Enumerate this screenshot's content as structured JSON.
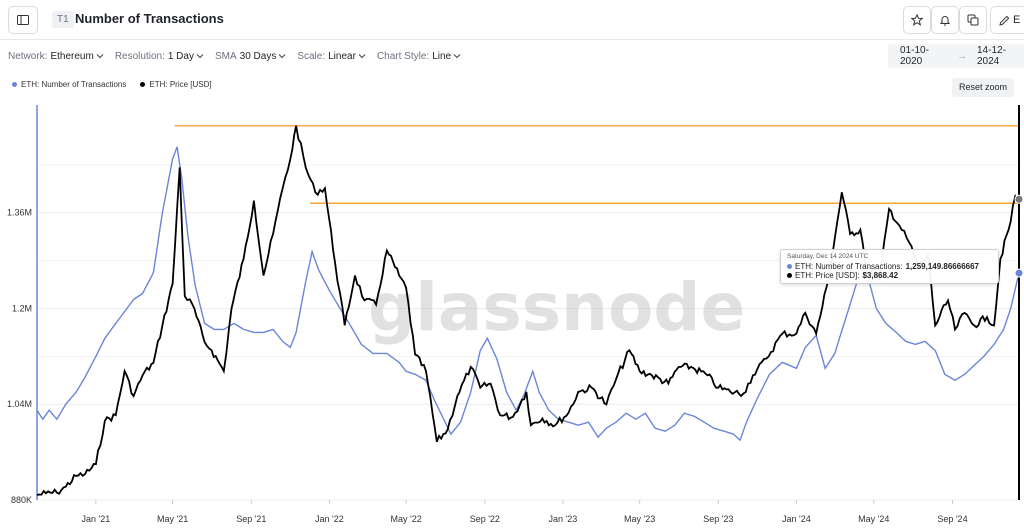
{
  "header": {
    "badge": "T1",
    "title": "Number of Transactions",
    "edit_label": "E"
  },
  "controls": [
    {
      "key": "Network:",
      "value": "Ethereum"
    },
    {
      "key": "Resolution:",
      "value": "1 Day"
    },
    {
      "key": "SMA",
      "value": "30 Days"
    },
    {
      "key": "Scale:",
      "value": "Linear"
    },
    {
      "key": "Chart Style:",
      "value": "Line"
    }
  ],
  "date_range": {
    "start": "01-10-2020",
    "arrow": "→",
    "end": "14-12-2024"
  },
  "reset_zoom": "Reset zoom",
  "watermark": "glassnode",
  "tooltip": {
    "date": "Saturday, Dec 14 2024 UTC",
    "rows": [
      {
        "label": "ETH: Number of Transactions:",
        "value": "1,259,149.86666667",
        "color": "#6b85d9"
      },
      {
        "label": "ETH: Price [USD]:",
        "value": "$3,868.42",
        "color": "#000000"
      }
    ]
  },
  "colors": {
    "transactions": "#6b85d9",
    "price": "#000000",
    "reference_lines": "#f7a535",
    "crosshair": "#000000"
  },
  "chart_data": {
    "type": "line",
    "x_axis": {
      "type": "date",
      "range": [
        "2020-10-01",
        "2024-12-14"
      ],
      "tick_labels": [
        "Jan '21",
        "May '21",
        "Sep '21",
        "Jan '22",
        "May '22",
        "Sep '22",
        "Jan '23",
        "May '23",
        "Sep '23",
        "Jan '24",
        "May '24",
        "Sep '24"
      ]
    },
    "y_axis": {
      "range": [
        880000,
        1540000
      ],
      "ticks": [
        880000,
        1040000,
        1200000,
        1360000
      ],
      "tick_labels": [
        "880K",
        "1.04M",
        "1.2M",
        "1.36M"
      ]
    },
    "grid": true,
    "legend_position": "top-left",
    "reference_lines": [
      {
        "y_price": 4800
      },
      {
        "y_price": 3868.42
      }
    ],
    "series": [
      {
        "name": "ETH: Number of Transactions",
        "axis": "left",
        "color": "#6b85d9",
        "points": [
          [
            "2020-10-01",
            1030000
          ],
          [
            "2020-10-10",
            1015000
          ],
          [
            "2020-10-20",
            1030000
          ],
          [
            "2020-11-01",
            1015000
          ],
          [
            "2020-11-15",
            1040000
          ],
          [
            "2020-12-01",
            1060000
          ],
          [
            "2020-12-15",
            1085000
          ],
          [
            "2021-01-01",
            1120000
          ],
          [
            "2021-01-15",
            1150000
          ],
          [
            "2021-02-01",
            1175000
          ],
          [
            "2021-02-15",
            1195000
          ],
          [
            "2021-03-01",
            1215000
          ],
          [
            "2021-03-15",
            1225000
          ],
          [
            "2021-04-01",
            1260000
          ],
          [
            "2021-04-15",
            1360000
          ],
          [
            "2021-05-01",
            1450000
          ],
          [
            "2021-05-08",
            1470000
          ],
          [
            "2021-05-15",
            1420000
          ],
          [
            "2021-05-25",
            1320000
          ],
          [
            "2021-06-05",
            1240000
          ],
          [
            "2021-06-20",
            1175000
          ],
          [
            "2021-07-05",
            1165000
          ],
          [
            "2021-07-20",
            1165000
          ],
          [
            "2021-08-05",
            1175000
          ],
          [
            "2021-08-20",
            1165000
          ],
          [
            "2021-09-05",
            1160000
          ],
          [
            "2021-09-20",
            1160000
          ],
          [
            "2021-10-05",
            1165000
          ],
          [
            "2021-10-20",
            1145000
          ],
          [
            "2021-11-01",
            1135000
          ],
          [
            "2021-11-10",
            1160000
          ],
          [
            "2021-11-25",
            1245000
          ],
          [
            "2021-12-05",
            1295000
          ],
          [
            "2021-12-15",
            1265000
          ],
          [
            "2022-01-01",
            1230000
          ],
          [
            "2022-01-15",
            1205000
          ],
          [
            "2022-02-01",
            1175000
          ],
          [
            "2022-02-20",
            1140000
          ],
          [
            "2022-03-10",
            1125000
          ],
          [
            "2022-04-01",
            1125000
          ],
          [
            "2022-04-20",
            1110000
          ],
          [
            "2022-05-01",
            1095000
          ],
          [
            "2022-05-15",
            1090000
          ],
          [
            "2022-06-01",
            1080000
          ],
          [
            "2022-06-15",
            1045000
          ],
          [
            "2022-07-01",
            1010000
          ],
          [
            "2022-07-10",
            990000
          ],
          [
            "2022-07-25",
            1010000
          ],
          [
            "2022-08-10",
            1060000
          ],
          [
            "2022-08-25",
            1130000
          ],
          [
            "2022-09-05",
            1150000
          ],
          [
            "2022-09-20",
            1115000
          ],
          [
            "2022-10-05",
            1060000
          ],
          [
            "2022-10-20",
            1030000
          ],
          [
            "2022-11-01",
            1055000
          ],
          [
            "2022-11-15",
            1095000
          ],
          [
            "2022-11-25",
            1060000
          ],
          [
            "2022-12-10",
            1030000
          ],
          [
            "2022-12-25",
            1015000
          ],
          [
            "2023-01-10",
            1010000
          ],
          [
            "2023-01-25",
            1005000
          ],
          [
            "2023-02-10",
            1010000
          ],
          [
            "2023-02-25",
            985000
          ],
          [
            "2023-03-10",
            1000000
          ],
          [
            "2023-03-25",
            1010000
          ],
          [
            "2023-04-10",
            1025000
          ],
          [
            "2023-04-25",
            1015000
          ],
          [
            "2023-05-10",
            1025000
          ],
          [
            "2023-05-25",
            1000000
          ],
          [
            "2023-06-10",
            995000
          ],
          [
            "2023-06-25",
            1005000
          ],
          [
            "2023-07-10",
            1025000
          ],
          [
            "2023-07-25",
            1020000
          ],
          [
            "2023-08-10",
            1010000
          ],
          [
            "2023-08-25",
            1000000
          ],
          [
            "2023-09-10",
            995000
          ],
          [
            "2023-09-25",
            990000
          ],
          [
            "2023-10-05",
            980000
          ],
          [
            "2023-10-15",
            1010000
          ],
          [
            "2023-11-01",
            1050000
          ],
          [
            "2023-11-20",
            1090000
          ],
          [
            "2023-12-10",
            1110000
          ],
          [
            "2024-01-01",
            1100000
          ],
          [
            "2024-01-15",
            1135000
          ],
          [
            "2024-02-01",
            1155000
          ],
          [
            "2024-02-15",
            1100000
          ],
          [
            "2024-03-01",
            1125000
          ],
          [
            "2024-03-20",
            1190000
          ],
          [
            "2024-04-05",
            1245000
          ],
          [
            "2024-04-20",
            1260000
          ],
          [
            "2024-05-05",
            1200000
          ],
          [
            "2024-05-20",
            1175000
          ],
          [
            "2024-06-05",
            1160000
          ],
          [
            "2024-06-20",
            1145000
          ],
          [
            "2024-07-05",
            1140000
          ],
          [
            "2024-07-20",
            1145000
          ],
          [
            "2024-08-05",
            1130000
          ],
          [
            "2024-08-20",
            1090000
          ],
          [
            "2024-09-05",
            1080000
          ],
          [
            "2024-09-20",
            1090000
          ],
          [
            "2024-10-05",
            1105000
          ],
          [
            "2024-10-20",
            1120000
          ],
          [
            "2024-11-05",
            1140000
          ],
          [
            "2024-11-20",
            1165000
          ],
          [
            "2024-12-01",
            1200000
          ],
          [
            "2024-12-14",
            1259150
          ]
        ]
      },
      {
        "name": "ETH: Price [USD]",
        "axis": "right",
        "color": "#000000",
        "points": [
          [
            "2020-10-01",
            360
          ],
          [
            "2020-10-15",
            380
          ],
          [
            "2020-11-01",
            390
          ],
          [
            "2020-11-15",
            460
          ],
          [
            "2020-12-01",
            590
          ],
          [
            "2020-12-15",
            610
          ],
          [
            "2021-01-01",
            730
          ],
          [
            "2021-01-15",
            1250
          ],
          [
            "2021-02-01",
            1320
          ],
          [
            "2021-02-15",
            1850
          ],
          [
            "2021-03-01",
            1550
          ],
          [
            "2021-03-15",
            1800
          ],
          [
            "2021-04-01",
            1950
          ],
          [
            "2021-04-15",
            2400
          ],
          [
            "2021-05-01",
            2900
          ],
          [
            "2021-05-12",
            4300
          ],
          [
            "2021-05-20",
            2750
          ],
          [
            "2021-06-01",
            2650
          ],
          [
            "2021-06-20",
            2200
          ],
          [
            "2021-07-01",
            2100
          ],
          [
            "2021-07-20",
            1850
          ],
          [
            "2021-08-01",
            2600
          ],
          [
            "2021-08-20",
            3200
          ],
          [
            "2021-09-05",
            3900
          ],
          [
            "2021-09-20",
            3000
          ],
          [
            "2021-10-05",
            3500
          ],
          [
            "2021-10-20",
            4050
          ],
          [
            "2021-11-01",
            4400
          ],
          [
            "2021-11-10",
            4800
          ],
          [
            "2021-11-25",
            4300
          ],
          [
            "2021-12-10",
            4000
          ],
          [
            "2021-12-25",
            4050
          ],
          [
            "2022-01-10",
            3150
          ],
          [
            "2022-01-25",
            2400
          ],
          [
            "2022-02-10",
            3000
          ],
          [
            "2022-02-25",
            2700
          ],
          [
            "2022-03-15",
            2650
          ],
          [
            "2022-04-01",
            3300
          ],
          [
            "2022-04-20",
            3000
          ],
          [
            "2022-05-01",
            2850
          ],
          [
            "2022-05-15",
            2050
          ],
          [
            "2022-06-01",
            1850
          ],
          [
            "2022-06-18",
            1000
          ],
          [
            "2022-07-05",
            1150
          ],
          [
            "2022-07-20",
            1550
          ],
          [
            "2022-08-10",
            1900
          ],
          [
            "2022-08-25",
            1650
          ],
          [
            "2022-09-10",
            1700
          ],
          [
            "2022-09-25",
            1320
          ],
          [
            "2022-10-15",
            1300
          ],
          [
            "2022-11-05",
            1600
          ],
          [
            "2022-11-12",
            1200
          ],
          [
            "2022-11-30",
            1280
          ],
          [
            "2022-12-20",
            1200
          ],
          [
            "2023-01-10",
            1350
          ],
          [
            "2023-01-25",
            1600
          ],
          [
            "2023-02-15",
            1650
          ],
          [
            "2023-03-10",
            1450
          ],
          [
            "2023-03-25",
            1750
          ],
          [
            "2023-04-15",
            2100
          ],
          [
            "2023-05-01",
            1850
          ],
          [
            "2023-05-20",
            1800
          ],
          [
            "2023-06-15",
            1700
          ],
          [
            "2023-07-01",
            1900
          ],
          [
            "2023-07-20",
            1900
          ],
          [
            "2023-08-15",
            1800
          ],
          [
            "2023-09-01",
            1650
          ],
          [
            "2023-09-20",
            1600
          ],
          [
            "2023-10-10",
            1580
          ],
          [
            "2023-10-25",
            1800
          ],
          [
            "2023-11-15",
            2000
          ],
          [
            "2023-12-10",
            2300
          ],
          [
            "2024-01-01",
            2300
          ],
          [
            "2024-01-15",
            2550
          ],
          [
            "2024-02-01",
            2300
          ],
          [
            "2024-02-20",
            2950
          ],
          [
            "2024-03-12",
            4000
          ],
          [
            "2024-03-25",
            3500
          ],
          [
            "2024-04-10",
            3550
          ],
          [
            "2024-04-20",
            3100
          ],
          [
            "2024-05-10",
            2950
          ],
          [
            "2024-05-25",
            3800
          ],
          [
            "2024-06-10",
            3600
          ],
          [
            "2024-06-25",
            3400
          ],
          [
            "2024-07-10",
            3100
          ],
          [
            "2024-07-25",
            3250
          ],
          [
            "2024-08-05",
            2400
          ],
          [
            "2024-08-25",
            2700
          ],
          [
            "2024-09-05",
            2350
          ],
          [
            "2024-09-20",
            2550
          ],
          [
            "2024-10-05",
            2400
          ],
          [
            "2024-10-25",
            2500
          ],
          [
            "2024-11-05",
            2400
          ],
          [
            "2024-11-15",
            3200
          ],
          [
            "2024-12-01",
            3650
          ],
          [
            "2024-12-08",
            3950
          ],
          [
            "2024-12-14",
            3868.42
          ]
        ]
      }
    ]
  }
}
